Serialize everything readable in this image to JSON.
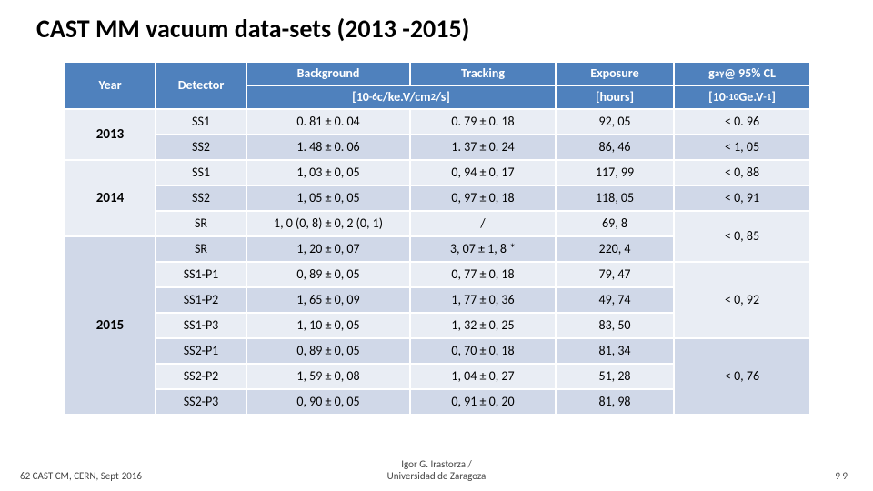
{
  "title": "CAST MM vacuum data-sets (2013 -2015)",
  "footer": {
    "left": "62 CAST CM, CERN, Sept-2016",
    "center_line1": "Igor G. Irastorza /",
    "center_line2": "Universidad de Zaragoza",
    "right": "9   9"
  },
  "header": {
    "year": "Year",
    "detector": "Detector",
    "background": "Background",
    "tracking": "Tracking",
    "exposure": "Exposure",
    "coupling": "g_aγ @ 95% CL",
    "units_bg_trk_html": "[10<span class='sup'>-6</span> c/ke.V/cm<span class='sup'>2</span>/s]",
    "units_exposure": "[hours]",
    "units_coupling_html": "[10<span class='sup'>-10</span> Ge.V<span class='sup'>-1</span>]"
  },
  "layout": {
    "col_widths": "100px 100px 180px 160px 130px 150px",
    "header_row_h": 26,
    "data_row_h": 28
  },
  "colors": {
    "header_bg": "#4f81bd",
    "band_a": "#e9edf4",
    "band_b": "#d0d8e8",
    "border": "#ffffff",
    "text": "#000000"
  },
  "years": [
    {
      "label": "2013",
      "rowspan": 2,
      "band_start": "a"
    },
    {
      "label": "2014",
      "rowspan": 3,
      "band_start": "a"
    },
    {
      "label": "2015",
      "rowspan": 7,
      "band_start": "b"
    }
  ],
  "rows": [
    {
      "y": 0,
      "det": "SS1",
      "bg": "0. 81 ± 0. 04",
      "trk": "0. 79 ± 0. 18",
      "exp": "92, 05",
      "g": "< 0. 96",
      "band": "a",
      "g_rowspan": 1
    },
    {
      "y": 0,
      "det": "SS2",
      "bg": "1. 48 ± 0. 06",
      "trk": "1. 37 ± 0. 24",
      "exp": "86, 46",
      "g": "< 1, 05",
      "band": "b",
      "g_rowspan": 1
    },
    {
      "y": 1,
      "det": "SS1",
      "bg": "1, 03 ± 0, 05",
      "trk": "0, 94 ± 0, 17",
      "exp": "117, 99",
      "g": "< 0, 88",
      "band": "a",
      "g_rowspan": 1
    },
    {
      "y": 1,
      "det": "SS2",
      "bg": "1, 05 ± 0, 05",
      "trk": "0, 97 ± 0, 18",
      "exp": "118, 05",
      "g": "< 0, 91",
      "band": "b",
      "g_rowspan": 1
    },
    {
      "y": 1,
      "det": "SR",
      "bg": "1, 0 (0, 8) ± 0, 2 (0, 1)",
      "trk": "/",
      "exp": "69, 8",
      "g": "< 0, 85",
      "band": "a",
      "g_rowspan": 2
    },
    {
      "y": 2,
      "det": "SR",
      "bg": "1, 20 ± 0, 07",
      "trk": "3, 07 ± 1, 8 *",
      "exp": "220, 4",
      "g": null,
      "band": "b"
    },
    {
      "y": 2,
      "det": "SS1-P1",
      "bg": "0, 89 ± 0, 05",
      "trk": "0, 77 ± 0, 18",
      "exp": "79, 47",
      "g": "< 0, 92",
      "band": "a",
      "g_rowspan": 3
    },
    {
      "y": 2,
      "det": "SS1-P2",
      "bg": "1, 65 ± 0, 09",
      "trk": "1, 77 ± 0, 36",
      "exp": "49, 74",
      "g": null,
      "band": "b"
    },
    {
      "y": 2,
      "det": "SS1-P3",
      "bg": "1, 10 ± 0, 05",
      "trk": "1, 32 ± 0, 25",
      "exp": "83, 50",
      "g": null,
      "band": "a"
    },
    {
      "y": 2,
      "det": "SS2-P1",
      "bg": "0, 89 ± 0, 05",
      "trk": "0, 70 ± 0, 18",
      "exp": "81, 34",
      "g": "< 0, 76",
      "band": "b",
      "g_rowspan": 3
    },
    {
      "y": 2,
      "det": "SS2-P2",
      "bg": "1, 59 ± 0, 08",
      "trk": "1, 04 ± 0, 27",
      "exp": "51, 28",
      "g": null,
      "band": "a"
    },
    {
      "y": 2,
      "det": "SS2-P3",
      "bg": "0, 90 ± 0, 05",
      "trk": "0, 91 ± 0, 20",
      "exp": "81, 98",
      "g": null,
      "band": "b"
    }
  ]
}
